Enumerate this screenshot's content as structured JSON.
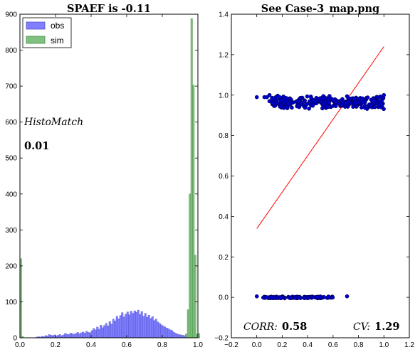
{
  "chart_data": [
    {
      "type": "bar",
      "title": "SPAEF is -0.11",
      "xlim": [
        0.0,
        1.0
      ],
      "ylim": [
        0,
        900
      ],
      "xticks": [
        "0.0",
        "0.2",
        "0.4",
        "0.6",
        "0.8",
        "1.0"
      ],
      "yticks": [
        "0",
        "100",
        "200",
        "300",
        "400",
        "500",
        "600",
        "700",
        "800",
        "900"
      ],
      "legend": {
        "placement": "top-left",
        "entries": [
          "obs",
          "sim"
        ]
      },
      "annotations": {
        "histo_label": "HistoMatch",
        "histo_value": "0.01"
      },
      "series": [
        {
          "name": "obs",
          "color": "#8080ff",
          "bin_width": 0.01,
          "bins": [
            [
              0.09,
              2
            ],
            [
              0.1,
              3
            ],
            [
              0.11,
              2
            ],
            [
              0.12,
              4
            ],
            [
              0.13,
              3
            ],
            [
              0.14,
              6
            ],
            [
              0.15,
              5
            ],
            [
              0.16,
              9
            ],
            [
              0.17,
              7
            ],
            [
              0.18,
              6
            ],
            [
              0.19,
              8
            ],
            [
              0.2,
              5
            ],
            [
              0.21,
              7
            ],
            [
              0.22,
              9
            ],
            [
              0.23,
              6
            ],
            [
              0.24,
              8
            ],
            [
              0.25,
              12
            ],
            [
              0.26,
              10
            ],
            [
              0.27,
              9
            ],
            [
              0.28,
              13
            ],
            [
              0.29,
              11
            ],
            [
              0.3,
              10
            ],
            [
              0.31,
              12
            ],
            [
              0.32,
              15
            ],
            [
              0.33,
              11
            ],
            [
              0.34,
              14
            ],
            [
              0.35,
              16
            ],
            [
              0.36,
              13
            ],
            [
              0.37,
              18
            ],
            [
              0.38,
              15
            ],
            [
              0.39,
              14
            ],
            [
              0.4,
              20
            ],
            [
              0.41,
              26
            ],
            [
              0.42,
              22
            ],
            [
              0.43,
              30
            ],
            [
              0.44,
              24
            ],
            [
              0.45,
              35
            ],
            [
              0.46,
              28
            ],
            [
              0.47,
              34
            ],
            [
              0.48,
              40
            ],
            [
              0.49,
              33
            ],
            [
              0.5,
              45
            ],
            [
              0.51,
              38
            ],
            [
              0.52,
              52
            ],
            [
              0.53,
              47
            ],
            [
              0.54,
              60
            ],
            [
              0.55,
              53
            ],
            [
              0.56,
              62
            ],
            [
              0.57,
              70
            ],
            [
              0.58,
              58
            ],
            [
              0.59,
              66
            ],
            [
              0.6,
              72
            ],
            [
              0.61,
              64
            ],
            [
              0.62,
              74
            ],
            [
              0.63,
              68
            ],
            [
              0.64,
              75
            ],
            [
              0.65,
              71
            ],
            [
              0.66,
              77
            ],
            [
              0.67,
              65
            ],
            [
              0.68,
              73
            ],
            [
              0.69,
              60
            ],
            [
              0.7,
              68
            ],
            [
              0.71,
              57
            ],
            [
              0.72,
              63
            ],
            [
              0.73,
              54
            ],
            [
              0.74,
              59
            ],
            [
              0.75,
              48
            ],
            [
              0.76,
              52
            ],
            [
              0.77,
              44
            ],
            [
              0.78,
              40
            ],
            [
              0.79,
              36
            ],
            [
              0.8,
              33
            ],
            [
              0.81,
              30
            ],
            [
              0.82,
              27
            ],
            [
              0.83,
              25
            ],
            [
              0.84,
              22
            ],
            [
              0.85,
              20
            ],
            [
              0.86,
              15
            ],
            [
              0.87,
              13
            ],
            [
              0.88,
              10
            ],
            [
              0.89,
              9
            ],
            [
              0.9,
              8
            ],
            [
              0.91,
              7
            ],
            [
              0.92,
              6
            ],
            [
              0.93,
              10
            ],
            [
              0.94,
              12
            ],
            [
              0.95,
              15
            ],
            [
              0.96,
              11
            ],
            [
              0.97,
              8
            ],
            [
              0.98,
              6
            ],
            [
              0.99,
              4
            ],
            [
              1.0,
              3
            ]
          ]
        },
        {
          "name": "sim",
          "color": "#80c080",
          "bin_width": 0.01,
          "bins": [
            [
              0.0,
              220
            ],
            [
              0.01,
              4
            ],
            [
              0.93,
              10
            ],
            [
              0.94,
              78
            ],
            [
              0.95,
              400
            ],
            [
              0.96,
              888
            ],
            [
              0.97,
              703
            ],
            [
              0.98,
              230
            ],
            [
              0.99,
              10
            ],
            [
              1.0,
              12
            ]
          ]
        }
      ]
    },
    {
      "type": "scatter",
      "title": "See Case-3_map.png",
      "xlim": [
        -0.2,
        1.2
      ],
      "ylim": [
        -0.2,
        1.4
      ],
      "xticks": [
        "−0.2",
        "0.0",
        "0.2",
        "0.4",
        "0.6",
        "0.8",
        "1.0",
        "1.2"
      ],
      "yticks": [
        "−0.2",
        "0.0",
        "0.2",
        "0.4",
        "0.6",
        "0.8",
        "1.0",
        "1.2",
        "1.4"
      ],
      "point_color": "#0000cc",
      "fit_line": {
        "x": [
          0.0,
          1.0
        ],
        "y": [
          0.34,
          1.24
        ],
        "color": "#ff0000"
      },
      "point_clusters": [
        {
          "x_range": [
            0.12,
            1.0
          ],
          "y_range": [
            0.93,
            1.0
          ],
          "count": 320
        },
        {
          "x_range": [
            0.05,
            0.6
          ],
          "y_range": [
            -0.005,
            0.005
          ],
          "count": 150
        }
      ],
      "points": [
        [
          0.0,
          0.99
        ],
        [
          0.06,
          0.99
        ],
        [
          0.08,
          0.99
        ],
        [
          0.1,
          1.0
        ],
        [
          0.12,
          0.985
        ],
        [
          0.15,
          0.99
        ],
        [
          0.13,
          0.96
        ],
        [
          0.1,
          0.97
        ],
        [
          0.16,
          0.975
        ],
        [
          0.18,
          0.99
        ],
        [
          0.0,
          0.005
        ],
        [
          0.71,
          0.005
        ],
        [
          1.0,
          1.0
        ],
        [
          0.97,
          0.96
        ],
        [
          0.95,
          0.99
        ]
      ],
      "annotations": {
        "corr_label": "CORR:",
        "corr_value": "0.58",
        "cv_label": "CV:",
        "cv_value": "1.29"
      }
    }
  ]
}
